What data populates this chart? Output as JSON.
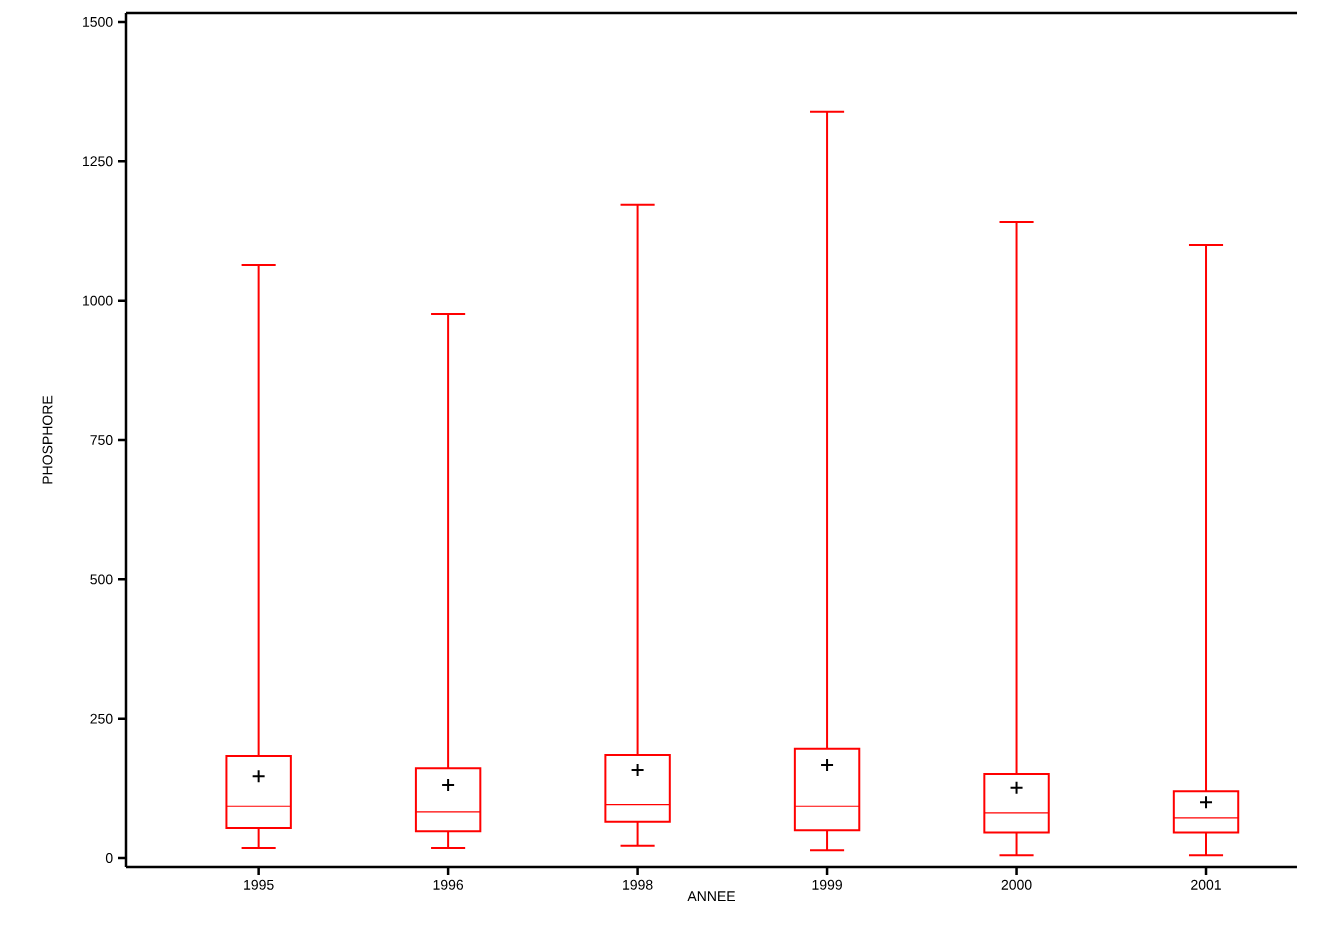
{
  "chart_data": {
    "type": "box",
    "xlabel": "ANNEE",
    "ylabel": "PHOSPHORE",
    "categories": [
      "1995",
      "1996",
      "1998",
      "1999",
      "2000",
      "2001"
    ],
    "color": "#ff0000",
    "boxes": [
      {
        "low": 18,
        "q1": 54,
        "median": 93,
        "q3": 183,
        "high": 1064,
        "mean": 147
      },
      {
        "low": 18,
        "q1": 48,
        "median": 83,
        "q3": 161,
        "high": 976,
        "mean": 131
      },
      {
        "low": 22,
        "q1": 65,
        "median": 96,
        "q3": 185,
        "high": 1172,
        "mean": 158
      },
      {
        "low": 14,
        "q1": 50,
        "median": 93,
        "q3": 196,
        "high": 1339,
        "mean": 167
      },
      {
        "low": 5,
        "q1": 46,
        "median": 81,
        "q3": 151,
        "high": 1141,
        "mean": 126
      },
      {
        "low": 5,
        "q1": 46,
        "median": 72,
        "q3": 120,
        "high": 1100,
        "mean": 100
      }
    ],
    "ylim": [
      -16,
      1516
    ],
    "yticks": [
      0,
      250,
      500,
      750,
      1000,
      1250,
      1500
    ],
    "grid": false
  }
}
